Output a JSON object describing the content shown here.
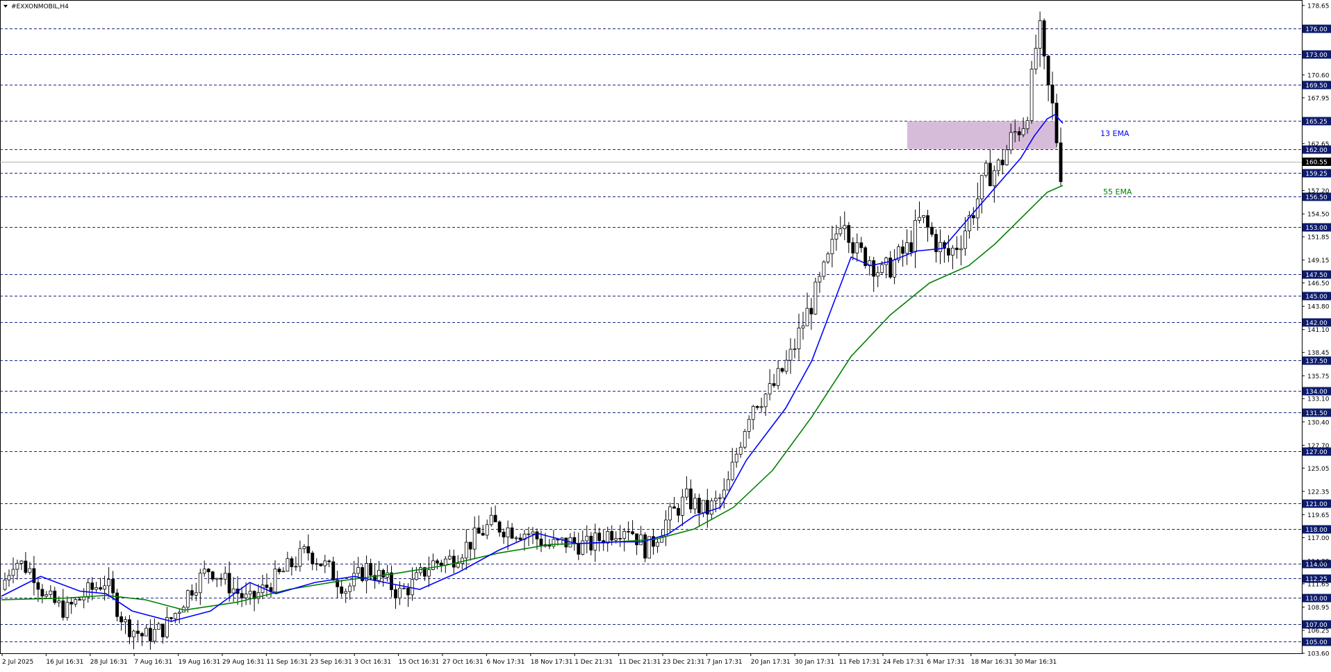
{
  "symbol_label": "#EXXONMOBIL,H4",
  "colors": {
    "background": "#ffffff",
    "frame": "#000000",
    "level_line": "#1a237e",
    "level_badge_bg": "#0d1b6e",
    "level_badge_text": "#ffffff",
    "ema13": "#0000ff",
    "ema55": "#008000",
    "zone_fill": "#d7bcd9",
    "candle": "#000000",
    "current_price_line": "#b0b0b0"
  },
  "chart_data": {
    "type": "candlestick",
    "timeframe": "H4",
    "y_axis": {
      "min": 103.6,
      "max": 179.2,
      "tick_labels": [
        "178.65",
        "170.60",
        "167.95",
        "162.65",
        "157.20",
        "154.50",
        "151.85",
        "149.15",
        "146.50",
        "143.80",
        "141.10",
        "138.45",
        "135.75",
        "133.10",
        "130.40",
        "127.70",
        "125.05",
        "122.35",
        "119.65",
        "117.00",
        "114.30",
        "111.65",
        "108.95",
        "106.25",
        "103.60"
      ]
    },
    "x_axis": {
      "tick_labels": [
        "2 Jul 2025",
        "16 Jul 16:31",
        "28 Jul 16:31",
        "7 Aug 16:31",
        "19 Aug 16:31",
        "29 Aug 16:31",
        "11 Sep 16:31",
        "23 Sep 16:31",
        "3 Oct 16:31",
        "15 Oct 16:31",
        "27 Oct 16:31",
        "6 Nov 17:31",
        "18 Nov 17:31",
        "1 Dec 21:31",
        "11 Dec 21:31",
        "23 Dec 21:31",
        "7 Jan 17:31",
        "20 Jan 17:31",
        "30 Jan 17:31",
        "11 Feb 17:31",
        "24 Feb 17:31",
        "6 Mar 17:31",
        "18 Mar 16:31",
        "30 Mar 16:31"
      ]
    },
    "horizontal_levels": [
      "176.00",
      "173.00",
      "169.50",
      "165.25",
      "162.00",
      "159.25",
      "156.50",
      "153.00",
      "147.50",
      "145.00",
      "142.00",
      "137.50",
      "134.00",
      "131.50",
      "127.00",
      "121.00",
      "118.00",
      "114.00",
      "112.25",
      "110.00",
      "107.00",
      "105.00"
    ],
    "current_price": "160.55",
    "zone": {
      "low": 162.0,
      "high": 165.25
    },
    "indicators": [
      {
        "name": "13 EMA",
        "color": "#0000ff"
      },
      {
        "name": "55 EMA",
        "color": "#008000"
      }
    ],
    "price_path": [
      [
        0,
        111.0
      ],
      [
        0.01,
        114.5
      ],
      [
        0.025,
        113.0
      ],
      [
        0.035,
        110.0
      ],
      [
        0.05,
        108.5
      ],
      [
        0.065,
        110.5
      ],
      [
        0.08,
        112.0
      ],
      [
        0.095,
        107.0
      ],
      [
        0.11,
        105.5
      ],
      [
        0.125,
        106.5
      ],
      [
        0.135,
        108.5
      ],
      [
        0.145,
        111.0
      ],
      [
        0.16,
        113.5
      ],
      [
        0.175,
        111.5
      ],
      [
        0.19,
        109.5
      ],
      [
        0.205,
        111.5
      ],
      [
        0.22,
        113.5
      ],
      [
        0.235,
        115.5
      ],
      [
        0.25,
        113.5
      ],
      [
        0.265,
        111.0
      ],
      [
        0.28,
        113.5
      ],
      [
        0.295,
        112.0
      ],
      [
        0.305,
        110.5
      ],
      [
        0.315,
        111.5
      ],
      [
        0.33,
        114.0
      ],
      [
        0.345,
        114.5
      ],
      [
        0.36,
        116.5
      ],
      [
        0.375,
        118.5
      ],
      [
        0.39,
        118.0
      ],
      [
        0.405,
        117.5
      ],
      [
        0.42,
        116.0
      ],
      [
        0.435,
        116.5
      ],
      [
        0.45,
        116.0
      ],
      [
        0.465,
        117.5
      ],
      [
        0.48,
        118.5
      ],
      [
        0.495,
        115.5
      ],
      [
        0.51,
        119.0
      ],
      [
        0.525,
        121.5
      ],
      [
        0.54,
        120.0
      ],
      [
        0.555,
        122.0
      ],
      [
        0.565,
        127.5
      ],
      [
        0.575,
        132.5
      ],
      [
        0.59,
        134.0
      ],
      [
        0.605,
        138.0
      ],
      [
        0.615,
        142.0
      ],
      [
        0.625,
        145.5
      ],
      [
        0.635,
        149.5
      ],
      [
        0.645,
        155.0
      ],
      [
        0.655,
        150.0
      ],
      [
        0.665,
        149.5
      ],
      [
        0.675,
        147.5
      ],
      [
        0.685,
        149.0
      ],
      [
        0.695,
        150.5
      ],
      [
        0.705,
        154.0
      ],
      [
        0.715,
        151.5
      ],
      [
        0.725,
        149.5
      ],
      [
        0.735,
        151.5
      ],
      [
        0.745,
        155.0
      ],
      [
        0.755,
        159.0
      ],
      [
        0.765,
        160.0
      ],
      [
        0.775,
        163.5
      ],
      [
        0.785,
        165.5
      ],
      [
        0.79,
        170.0
      ],
      [
        0.795,
        176.5
      ],
      [
        0.8,
        170.5
      ],
      [
        0.806,
        166.5
      ],
      [
        0.812,
        159.5
      ]
    ],
    "ema13_path": [
      [
        0,
        110.2
      ],
      [
        0.03,
        112.5
      ],
      [
        0.06,
        110.8
      ],
      [
        0.08,
        110.5
      ],
      [
        0.1,
        108.5
      ],
      [
        0.13,
        107.3
      ],
      [
        0.16,
        108.5
      ],
      [
        0.19,
        111.8
      ],
      [
        0.21,
        110.5
      ],
      [
        0.24,
        111.8
      ],
      [
        0.27,
        112.5
      ],
      [
        0.3,
        111.6
      ],
      [
        0.32,
        111.0
      ],
      [
        0.35,
        113.0
      ],
      [
        0.38,
        115.5
      ],
      [
        0.41,
        117.5
      ],
      [
        0.44,
        116.3
      ],
      [
        0.47,
        116.5
      ],
      [
        0.49,
        116.5
      ],
      [
        0.51,
        117.4
      ],
      [
        0.53,
        119.5
      ],
      [
        0.55,
        120.5
      ],
      [
        0.57,
        126.0
      ],
      [
        0.6,
        132.0
      ],
      [
        0.62,
        137.5
      ],
      [
        0.64,
        145.5
      ],
      [
        0.65,
        149.5
      ],
      [
        0.665,
        148.5
      ],
      [
        0.68,
        149.0
      ],
      [
        0.7,
        150.2
      ],
      [
        0.72,
        150.5
      ],
      [
        0.74,
        154.0
      ],
      [
        0.76,
        157.5
      ],
      [
        0.78,
        161.0
      ],
      [
        0.79,
        163.5
      ],
      [
        0.8,
        165.5
      ],
      [
        0.806,
        166.0
      ],
      [
        0.812,
        165.0
      ]
    ],
    "ema55_path": [
      [
        0,
        109.8
      ],
      [
        0.05,
        110.0
      ],
      [
        0.08,
        110.3
      ],
      [
        0.11,
        109.8
      ],
      [
        0.14,
        108.6
      ],
      [
        0.18,
        109.5
      ],
      [
        0.22,
        111.0
      ],
      [
        0.26,
        112.0
      ],
      [
        0.3,
        112.8
      ],
      [
        0.34,
        113.8
      ],
      [
        0.38,
        115.2
      ],
      [
        0.42,
        116.2
      ],
      [
        0.46,
        116.4
      ],
      [
        0.5,
        116.8
      ],
      [
        0.53,
        118.0
      ],
      [
        0.56,
        120.5
      ],
      [
        0.59,
        124.8
      ],
      [
        0.62,
        131.0
      ],
      [
        0.65,
        138.0
      ],
      [
        0.68,
        142.8
      ],
      [
        0.71,
        146.5
      ],
      [
        0.74,
        148.5
      ],
      [
        0.76,
        151.0
      ],
      [
        0.78,
        154.0
      ],
      [
        0.8,
        157.0
      ],
      [
        0.812,
        157.8
      ]
    ]
  }
}
